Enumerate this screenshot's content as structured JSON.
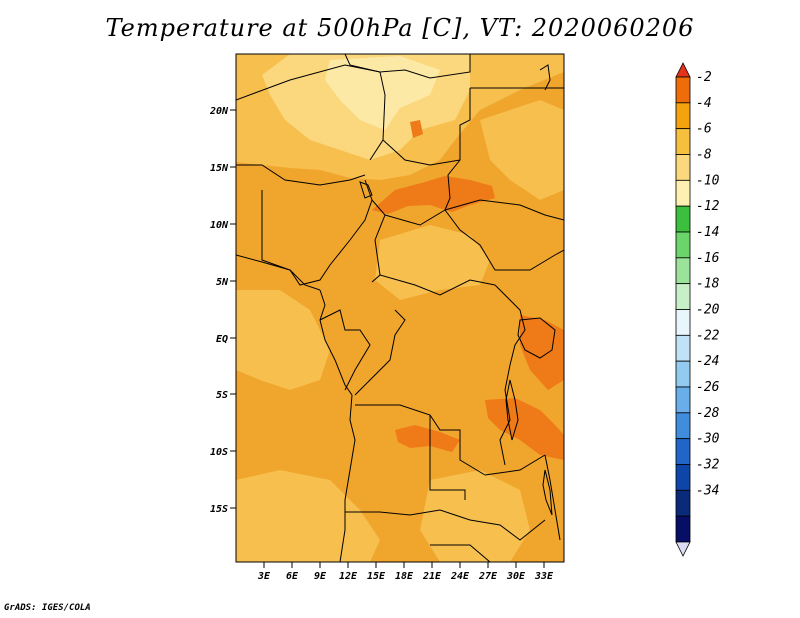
{
  "title": "Temperature at 500hPa [C], VT: 2020060206",
  "credit": "GrADS: IGES/COLA",
  "map": {
    "lat_labels": [
      "20N",
      "15N",
      "10N",
      "5N",
      "EQ",
      "5S",
      "10S",
      "15S"
    ],
    "lon_labels": [
      "3E",
      "6E",
      "9E",
      "12E",
      "15E",
      "18E",
      "21E",
      "24E",
      "27E",
      "30E",
      "33E"
    ],
    "colors": {
      "base": "#f0a52c",
      "lighter": "#f6bf4e",
      "light": "#fbd77e",
      "pale": "#fde9a6",
      "dark": "#ee7a18",
      "border": "#000000"
    }
  },
  "colorbar": {
    "labels": [
      "-2",
      "-4",
      "-6",
      "-8",
      "-10",
      "-12",
      "-14",
      "-16",
      "-18",
      "-20",
      "-22",
      "-24",
      "-26",
      "-28",
      "-30",
      "-32",
      "-34"
    ],
    "colors": [
      "#e4331a",
      "#ee6d0a",
      "#f4a30f",
      "#f7bf3e",
      "#fbd77e",
      "#fdf0b0",
      "#3cbf3c",
      "#6bd46b",
      "#9be39b",
      "#c8f0c8",
      "#e8f6fb",
      "#bfe2f6",
      "#93caf0",
      "#69aee8",
      "#3f8ddc",
      "#1f66c8",
      "#0e45a8",
      "#0a2a7a",
      "#060e66",
      "#dcdcf2"
    ]
  }
}
